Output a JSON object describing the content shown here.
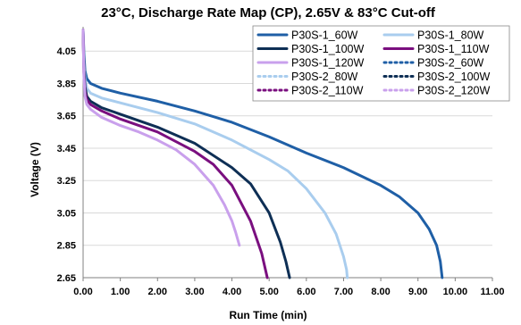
{
  "chart_data": {
    "type": "line",
    "title": "23°C, Discharge Rate Map (CP), 2.65V & 83°C Cut-off",
    "xlabel": "Run Time (min)",
    "ylabel": "Voltage (V)",
    "xlim": [
      0,
      11
    ],
    "ylim": [
      2.65,
      4.2
    ],
    "x_ticks": [
      "0.00",
      "1.00",
      "2.00",
      "3.00",
      "4.00",
      "5.00",
      "6.00",
      "7.00",
      "8.00",
      "9.00",
      "10.00",
      "11.00"
    ],
    "y_ticks": [
      "2.65",
      "2.85",
      "3.05",
      "3.25",
      "3.45",
      "3.65",
      "3.85",
      "4.05"
    ],
    "grid": "horizontal",
    "legend_position": "top-right",
    "series": [
      {
        "name": "P30S-1_60W",
        "color": "#1f5fa6",
        "dash": "solid",
        "x": [
          0,
          0.02,
          0.05,
          0.1,
          0.2,
          0.5,
          1,
          2,
          3,
          4,
          5,
          6,
          7,
          8,
          8.5,
          9,
          9.3,
          9.5,
          9.6,
          9.65
        ],
        "y": [
          4.18,
          4.05,
          3.93,
          3.88,
          3.85,
          3.82,
          3.79,
          3.74,
          3.68,
          3.61,
          3.52,
          3.42,
          3.33,
          3.22,
          3.15,
          3.05,
          2.95,
          2.85,
          2.75,
          2.65
        ]
      },
      {
        "name": "P30S-1_80W",
        "color": "#a9cdee",
        "dash": "solid",
        "x": [
          0,
          0.02,
          0.05,
          0.1,
          0.2,
          0.5,
          1,
          2,
          3,
          4,
          5,
          5.5,
          6,
          6.5,
          6.8,
          7,
          7.08,
          7.1
        ],
        "y": [
          4.18,
          4.0,
          3.88,
          3.82,
          3.79,
          3.76,
          3.73,
          3.67,
          3.6,
          3.5,
          3.38,
          3.31,
          3.2,
          3.05,
          2.92,
          2.78,
          2.7,
          2.65
        ]
      },
      {
        "name": "P30S-1_100W",
        "color": "#0e2f55",
        "dash": "solid",
        "x": [
          0,
          0.02,
          0.05,
          0.1,
          0.2,
          0.5,
          1,
          2,
          3,
          4,
          4.5,
          5,
          5.3,
          5.45,
          5.55
        ],
        "y": [
          4.18,
          3.95,
          3.83,
          3.77,
          3.74,
          3.7,
          3.66,
          3.58,
          3.48,
          3.33,
          3.23,
          3.05,
          2.87,
          2.75,
          2.65
        ]
      },
      {
        "name": "P30S-1_110W",
        "color": "#7a0f7f",
        "dash": "solid",
        "x": [
          0,
          0.02,
          0.05,
          0.1,
          0.2,
          0.5,
          1,
          2,
          3,
          3.5,
          4,
          4.5,
          4.8,
          4.95
        ],
        "y": [
          4.18,
          3.92,
          3.8,
          3.75,
          3.72,
          3.68,
          3.63,
          3.55,
          3.43,
          3.35,
          3.22,
          3.0,
          2.8,
          2.65
        ]
      },
      {
        "name": "P30S-1_120W",
        "color": "#c9a0ec",
        "dash": "solid",
        "x": [
          0,
          0.02,
          0.05,
          0.1,
          0.2,
          0.5,
          1,
          1.5,
          2,
          2.5,
          3,
          3.5,
          3.8,
          4,
          4.1,
          4.2
        ],
        "y": [
          4.18,
          3.9,
          3.77,
          3.72,
          3.69,
          3.64,
          3.59,
          3.55,
          3.5,
          3.44,
          3.35,
          3.22,
          3.1,
          3.0,
          2.93,
          2.85
        ]
      },
      {
        "name": "P30S-2_60W",
        "color": "#1f5fa6",
        "dash": "dotted",
        "x": [],
        "y": []
      },
      {
        "name": "P30S-2_80W",
        "color": "#a9cdee",
        "dash": "dotted",
        "x": [],
        "y": []
      },
      {
        "name": "P30S-2_100W",
        "color": "#0e2f55",
        "dash": "dotted",
        "x": [],
        "y": []
      },
      {
        "name": "P30S-2_110W",
        "color": "#7a0f7f",
        "dash": "dotted",
        "x": [],
        "y": []
      },
      {
        "name": "P30S-2_120W",
        "color": "#c9a0ec",
        "dash": "dotted",
        "x": [],
        "y": []
      }
    ]
  }
}
